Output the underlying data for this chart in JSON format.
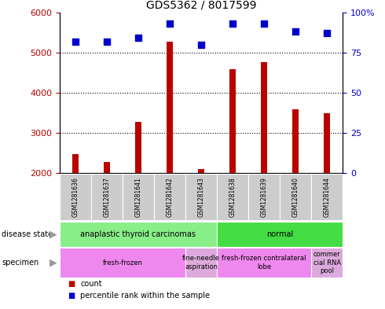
{
  "title": "GDS5362 / 8017599",
  "samples": [
    "GSM1281636",
    "GSM1281637",
    "GSM1281641",
    "GSM1281642",
    "GSM1281643",
    "GSM1281638",
    "GSM1281639",
    "GSM1281640",
    "GSM1281644"
  ],
  "counts": [
    2480,
    2280,
    3280,
    5280,
    2100,
    4580,
    4760,
    3580,
    3480
  ],
  "percentiles": [
    82,
    82,
    84,
    93,
    80,
    93,
    93,
    88,
    87
  ],
  "ylim_left": [
    2000,
    6000
  ],
  "ylim_right": [
    0,
    100
  ],
  "yticks_left": [
    2000,
    3000,
    4000,
    5000,
    6000
  ],
  "yticks_right": [
    0,
    25,
    50,
    75,
    100
  ],
  "bar_color": "#bb0000",
  "dot_color": "#0000cc",
  "grid_color": "#000000",
  "disease_state_groups": [
    {
      "label": "anaplastic thyroid carcinomas",
      "start": 0,
      "end": 5,
      "color": "#88ee88"
    },
    {
      "label": "normal",
      "start": 5,
      "end": 9,
      "color": "#44dd44"
    }
  ],
  "specimen_groups": [
    {
      "label": "fresh-frozen",
      "start": 0,
      "end": 4,
      "color": "#ee88ee"
    },
    {
      "label": "fine-needle\naspiration",
      "start": 4,
      "end": 5,
      "color": "#ddaadd"
    },
    {
      "label": "fresh-frozen contralateral\nlobe",
      "start": 5,
      "end": 8,
      "color": "#ee88ee"
    },
    {
      "label": "commer\ncial RNA\npool",
      "start": 8,
      "end": 9,
      "color": "#ddaadd"
    }
  ],
  "legend_count_color": "#bb0000",
  "legend_pct_color": "#0000cc",
  "bar_width": 0.18,
  "dot_size": 30,
  "label_fontsize": 6,
  "title_fontsize": 10,
  "axis_fontsize": 8
}
